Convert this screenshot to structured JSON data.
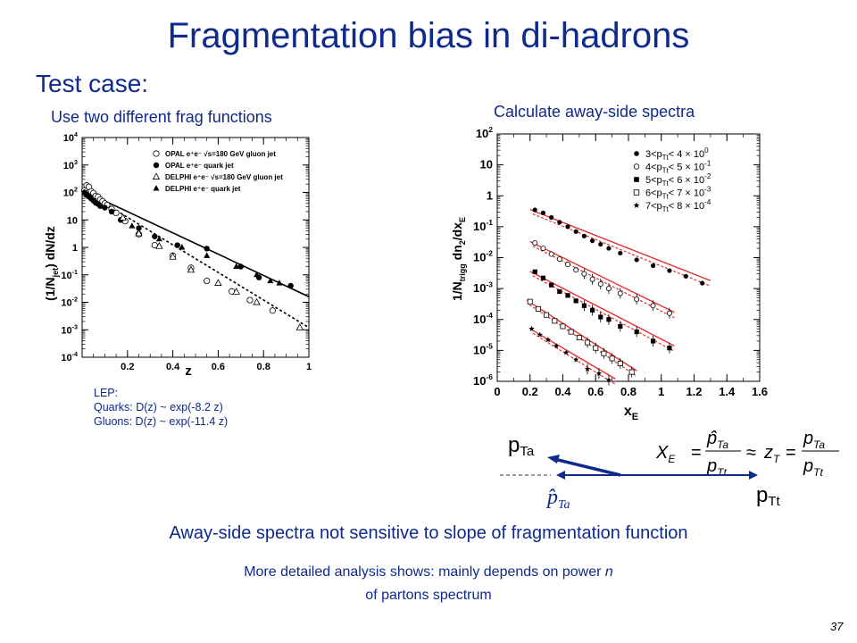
{
  "slide": {
    "title": "Fragmentation bias in di-hadrons",
    "subtitle": "Test case:",
    "left_caption": "Use two different frag functions",
    "right_caption": "Calculate away-side spectra",
    "lep": [
      "LEP:",
      "Quarks: D(z) ~ exp(-8.2 z)",
      "Gluons: D(z) ~ exp(-11.4 z)"
    ],
    "conclusion": "Away-side spectra not sensitive to slope of fragmentation function",
    "detail_line1_prefix": "More detailed analysis shows: mainly depends on power ",
    "detail_line1_var": "n",
    "detail_line2": "of partons spectrum",
    "page_number": "37"
  },
  "diagram": {
    "label_pTa_main": "p",
    "label_pTa_sub": "Ta",
    "label_pTt_main": "p",
    "label_pTt_sub": "Tt",
    "label_phat_main": "p̂",
    "label_phat_sub": "Ta",
    "formula": {
      "lhs": "X",
      "lhs_sub": "E",
      "frac1_num": "p̂",
      "frac1_num_sub": "Ta",
      "frac1_den": "p",
      "frac1_den_sub": "Tt",
      "approx": "≈",
      "z": "z",
      "z_sub": "T",
      "frac2_num": "p",
      "frac2_num_sub": "Ta",
      "frac2_den": "p",
      "frac2_den_sub": "Tt",
      "eq": "="
    }
  },
  "chart_data": [
    {
      "type": "scatter",
      "title": "",
      "xlabel": "z",
      "ylabel": "(1/N_jet) dN/dz",
      "ylabel_text": "(1/N",
      "ylabel_sub": "jet",
      "ylabel_rest": ") dN/dz",
      "xlim": [
        0,
        1
      ],
      "ylim": [
        0.0001,
        10000
      ],
      "yscale": "log",
      "xticks": [
        0.2,
        0.4,
        0.6,
        0.8,
        1
      ],
      "xtick_labels": [
        "0.2",
        "0.4",
        "0.6",
        "0.8",
        "1"
      ],
      "yticks": [
        0.0001,
        0.001,
        0.01,
        0.1,
        1,
        10,
        100,
        1000,
        10000
      ],
      "ytick_base": "10",
      "ytick_exps": [
        "-4",
        "-3",
        "-2",
        "-1",
        "",
        "",
        "2",
        "3",
        "4"
      ],
      "ytick_plain": [
        "",
        "",
        "",
        "",
        "1",
        "10",
        "",
        "",
        ""
      ],
      "legend_position": "top-right",
      "legend": [
        {
          "label": "OPAL e⁺e⁻ √s=180 GeV gluon jet",
          "marker": "open-circle"
        },
        {
          "label": "OPAL e⁺e⁻ quark jet",
          "marker": "filled-circle"
        },
        {
          "label": "DELPHI e⁺e⁻ √s=180 GeV gluon jet",
          "marker": "open-triangle"
        },
        {
          "label": "DELPHI e⁺e⁻ quark jet",
          "marker": "filled-triangle"
        }
      ],
      "fits": [
        {
          "name": "quark",
          "style": "solid",
          "x": [
            0.02,
            1.0
          ],
          "y": [
            100,
            0.016
          ]
        },
        {
          "name": "gluon",
          "style": "dashed",
          "x": [
            0.02,
            1.0
          ],
          "y": [
            100,
            0.0012
          ]
        }
      ],
      "series": [
        {
          "marker": "open-circle",
          "x": [
            0.01,
            0.02,
            0.03,
            0.04,
            0.05,
            0.06,
            0.07,
            0.08,
            0.09,
            0.1,
            0.11,
            0.13,
            0.15,
            0.19,
            0.25,
            0.32,
            0.4,
            0.48,
            0.55,
            0.66,
            0.74,
            0.84
          ],
          "y": [
            120,
            180,
            160,
            110,
            95,
            75,
            70,
            55,
            48,
            40,
            35,
            25,
            18,
            9,
            3.0,
            1.2,
            0.5,
            0.18,
            0.06,
            0.025,
            0.012,
            0.005
          ]
        },
        {
          "marker": "filled-circle",
          "x": [
            0.01,
            0.02,
            0.03,
            0.04,
            0.05,
            0.06,
            0.07,
            0.08,
            0.1,
            0.13,
            0.17,
            0.25,
            0.32,
            0.42,
            0.55,
            0.7,
            0.78,
            0.92
          ],
          "y": [
            100,
            80,
            70,
            60,
            50,
            42,
            38,
            32,
            28,
            20,
            10,
            5,
            2.5,
            1.2,
            0.9,
            0.2,
            0.08,
            0.04
          ]
        },
        {
          "marker": "open-triangle",
          "x": [
            0.18,
            0.25,
            0.34,
            0.4,
            0.48,
            0.6,
            0.68,
            0.77,
            0.96
          ],
          "y": [
            12,
            3.2,
            1.1,
            0.45,
            0.15,
            0.05,
            0.024,
            0.01,
            0.0012
          ]
        },
        {
          "marker": "filled-triangle",
          "x": [
            0.22,
            0.34,
            0.44,
            0.55,
            0.68,
            0.77,
            0.83,
            0.87
          ],
          "y": [
            6,
            2.0,
            1.0,
            0.5,
            0.2,
            0.1,
            0.06,
            0.05
          ]
        }
      ]
    },
    {
      "type": "scatter",
      "title": "",
      "xlabel": "x_E",
      "xlabel_text": "x",
      "xlabel_sub": "E",
      "ylabel": "1/N_trigg dn_2/dx_E",
      "ylabel_text": "1/N",
      "ylabel_sub": "trigg",
      "ylabel_rest": " dn",
      "ylabel_sub2": "2",
      "ylabel_rest2": "/dx",
      "ylabel_sub3": "E",
      "xlim": [
        0,
        1.6
      ],
      "ylim": [
        1e-06,
        100
      ],
      "yscale": "log",
      "xticks": [
        0,
        0.2,
        0.4,
        0.6,
        0.8,
        1,
        1.2,
        1.4,
        1.6
      ],
      "xtick_labels": [
        "0",
        "0.2",
        "0.4",
        "0.6",
        "0.8",
        "1",
        "1.2",
        "1.4",
        "1.6"
      ],
      "yticks": [
        1e-06,
        1e-05,
        0.0001,
        0.001,
        0.01,
        0.1,
        1,
        10,
        100
      ],
      "ytick_base": "10",
      "ytick_exps": [
        "-6",
        "-5",
        "-4",
        "-3",
        "-2",
        "-1",
        "",
        "",
        "2"
      ],
      "ytick_plain": [
        "",
        "",
        "",
        "",
        "",
        "",
        "1",
        "10",
        ""
      ],
      "legend_position": "top-right",
      "legend": [
        {
          "marker": "filled-circle",
          "lhs": "3<p",
          "sub": "Tt",
          "rhs": "< 4",
          "factor": "× 10",
          "exp": "0"
        },
        {
          "marker": "open-circle",
          "lhs": "4<p",
          "sub": "Tt",
          "rhs": "< 5",
          "factor": "× 10",
          "exp": "-1"
        },
        {
          "marker": "filled-square",
          "lhs": "5<p",
          "sub": "Tt",
          "rhs": "< 6",
          "factor": "× 10",
          "exp": "-2"
        },
        {
          "marker": "open-square",
          "lhs": "6<p",
          "sub": "Tt",
          "rhs": "< 7",
          "factor": "× 10",
          "exp": "-3"
        },
        {
          "marker": "star",
          "lhs": "7<p",
          "sub": "Tt",
          "rhs": "< 8",
          "factor": "× 10",
          "exp": "-4"
        }
      ],
      "series": [
        {
          "marker": "filled-circle",
          "x": [
            0.23,
            0.28,
            0.33,
            0.38,
            0.43,
            0.48,
            0.53,
            0.58,
            0.63,
            0.68,
            0.75,
            0.85,
            0.95,
            1.05,
            1.15,
            1.25
          ],
          "y": [
            0.35,
            0.28,
            0.2,
            0.14,
            0.1,
            0.07,
            0.05,
            0.035,
            0.027,
            0.02,
            0.014,
            0.0085,
            0.0055,
            0.0038,
            0.0025,
            0.0015
          ]
        },
        {
          "marker": "open-circle",
          "x": [
            0.23,
            0.28,
            0.33,
            0.38,
            0.43,
            0.48,
            0.53,
            0.58,
            0.63,
            0.68,
            0.75,
            0.85,
            0.95,
            1.05
          ],
          "y": [
            0.03,
            0.02,
            0.013,
            0.009,
            0.006,
            0.004,
            0.003,
            0.002,
            0.0014,
            0.001,
            0.0007,
            0.00045,
            0.00028,
            0.00016
          ]
        },
        {
          "marker": "filled-square",
          "x": [
            0.23,
            0.28,
            0.33,
            0.38,
            0.43,
            0.48,
            0.53,
            0.58,
            0.63,
            0.68,
            0.75,
            0.85,
            0.95,
            1.05
          ],
          "y": [
            0.0035,
            0.0022,
            0.0013,
            0.0008,
            0.0006,
            0.0004,
            0.00028,
            0.0002,
            0.00012,
            0.0001,
            6e-05,
            4e-05,
            2e-05,
            1.2e-05
          ]
        },
        {
          "marker": "open-square",
          "x": [
            0.2,
            0.25,
            0.3,
            0.35,
            0.4,
            0.45,
            0.5,
            0.55,
            0.6,
            0.65,
            0.7,
            0.75,
            0.82
          ],
          "y": [
            0.00038,
            0.00022,
            0.00014,
            9e-05,
            6e-05,
            4e-05,
            2.6e-05,
            1.8e-05,
            1.2e-05,
            8e-06,
            5.5e-06,
            3.8e-06,
            2e-06
          ]
        },
        {
          "marker": "star",
          "x": [
            0.21,
            0.26,
            0.31,
            0.36,
            0.42,
            0.48,
            0.55,
            0.62,
            0.68
          ],
          "y": [
            5e-05,
            3.2e-05,
            2.2e-05,
            1.4e-05,
            8.5e-06,
            5e-06,
            2.5e-06,
            1.8e-06,
            1.1e-06
          ]
        }
      ],
      "fits": [
        {
          "series": 0,
          "x": [
            0.2,
            1.3
          ],
          "y": [
            0.36,
            0.0018
          ]
        },
        {
          "series": 1,
          "x": [
            0.2,
            1.08
          ],
          "y": [
            0.033,
            0.00017
          ]
        },
        {
          "series": 2,
          "x": [
            0.2,
            1.08
          ],
          "y": [
            0.0036,
            1.4e-05
          ]
        },
        {
          "series": 3,
          "x": [
            0.18,
            0.85
          ],
          "y": [
            0.00042,
            2.2e-06
          ]
        },
        {
          "series": 4,
          "x": [
            0.2,
            0.72
          ],
          "y": [
            5e-05,
            1.2e-06
          ]
        }
      ]
    }
  ]
}
